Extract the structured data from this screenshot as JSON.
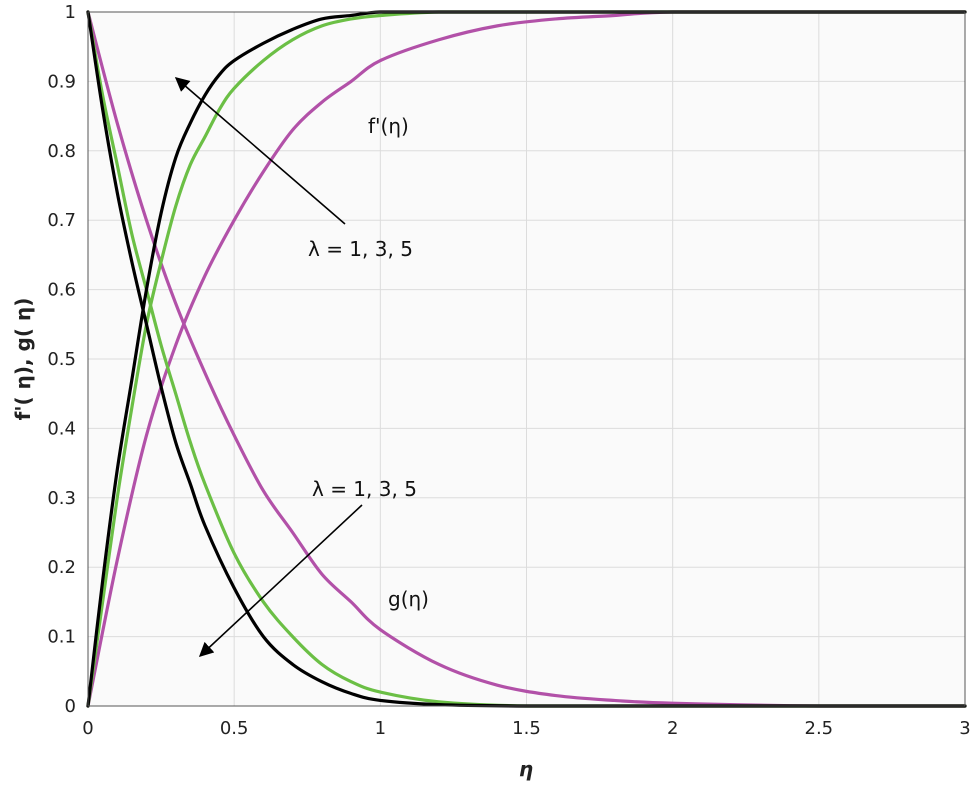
{
  "chart_data": {
    "type": "line",
    "xlabel": "η",
    "ylabel": "f'( η), g( η)",
    "xlim": [
      0,
      3
    ],
    "ylim": [
      0,
      1
    ],
    "x_ticks": [
      "0",
      "0.5",
      "1",
      "1.5",
      "2",
      "2.5",
      "3"
    ],
    "y_ticks": [
      "0",
      "0.1",
      "0.2",
      "0.3",
      "0.4",
      "0.5",
      "0.6",
      "0.7",
      "0.8",
      "0.9",
      "1"
    ],
    "grid": true,
    "colors": {
      "lambda1": "#000000",
      "lambda3": "#6bbf45",
      "lambda5": "#b251a8"
    },
    "series": [
      {
        "group": "f'",
        "lambda": 1,
        "color": "#000000",
        "x": [
          0,
          0.05,
          0.1,
          0.15,
          0.2,
          0.25,
          0.3,
          0.35,
          0.4,
          0.45,
          0.5,
          0.6,
          0.7,
          0.8,
          0.9,
          1.0,
          1.2,
          1.5,
          2,
          2.5,
          3
        ],
        "y": [
          0,
          0.18,
          0.34,
          0.47,
          0.6,
          0.71,
          0.79,
          0.84,
          0.88,
          0.91,
          0.93,
          0.955,
          0.975,
          0.99,
          0.995,
          1,
          1,
          1,
          1,
          1,
          1
        ]
      },
      {
        "group": "f'",
        "lambda": 3,
        "color": "#6bbf45",
        "x": [
          0,
          0.05,
          0.1,
          0.15,
          0.2,
          0.25,
          0.3,
          0.35,
          0.4,
          0.45,
          0.5,
          0.6,
          0.7,
          0.8,
          0.9,
          1.0,
          1.2,
          1.5,
          2,
          2.5,
          3
        ],
        "y": [
          0,
          0.15,
          0.3,
          0.43,
          0.55,
          0.64,
          0.72,
          0.78,
          0.82,
          0.86,
          0.89,
          0.93,
          0.96,
          0.98,
          0.99,
          0.995,
          1,
          1,
          1,
          1,
          1
        ]
      },
      {
        "group": "f'",
        "lambda": 5,
        "color": "#b251a8",
        "x": [
          0,
          0.1,
          0.2,
          0.3,
          0.4,
          0.5,
          0.6,
          0.7,
          0.8,
          0.9,
          1.0,
          1.2,
          1.4,
          1.6,
          1.8,
          2.0,
          2.5,
          3
        ],
        "y": [
          0,
          0.21,
          0.39,
          0.52,
          0.62,
          0.7,
          0.77,
          0.83,
          0.87,
          0.9,
          0.93,
          0.96,
          0.98,
          0.99,
          0.995,
          1,
          1,
          1
        ]
      },
      {
        "group": "g",
        "lambda": 1,
        "color": "#000000",
        "x": [
          0,
          0.05,
          0.1,
          0.15,
          0.2,
          0.25,
          0.3,
          0.35,
          0.4,
          0.5,
          0.6,
          0.7,
          0.8,
          0.9,
          1.0,
          1.2,
          1.5,
          2,
          2.5,
          3
        ],
        "y": [
          1,
          0.86,
          0.74,
          0.64,
          0.55,
          0.46,
          0.38,
          0.32,
          0.26,
          0.17,
          0.1,
          0.06,
          0.035,
          0.018,
          0.008,
          0.002,
          0,
          0,
          0,
          0
        ]
      },
      {
        "group": "g",
        "lambda": 3,
        "color": "#6bbf45",
        "x": [
          0,
          0.05,
          0.1,
          0.15,
          0.2,
          0.25,
          0.3,
          0.35,
          0.4,
          0.5,
          0.6,
          0.7,
          0.8,
          0.9,
          1.0,
          1.2,
          1.5,
          2,
          2.5,
          3
        ],
        "y": [
          1,
          0.88,
          0.78,
          0.68,
          0.6,
          0.52,
          0.45,
          0.38,
          0.32,
          0.22,
          0.15,
          0.1,
          0.06,
          0.035,
          0.02,
          0.006,
          0,
          0,
          0,
          0
        ]
      },
      {
        "group": "g",
        "lambda": 5,
        "color": "#b251a8",
        "x": [
          0,
          0.1,
          0.2,
          0.3,
          0.4,
          0.5,
          0.6,
          0.7,
          0.8,
          0.9,
          1.0,
          1.2,
          1.4,
          1.6,
          1.8,
          2.0,
          2.5,
          3
        ],
        "y": [
          1,
          0.84,
          0.7,
          0.58,
          0.48,
          0.39,
          0.31,
          0.25,
          0.19,
          0.15,
          0.11,
          0.06,
          0.03,
          0.015,
          0.008,
          0.004,
          0,
          0
        ]
      }
    ],
    "annotations": {
      "f_label": "f'(η)",
      "g_label": "g(η)",
      "lambda_upper": "λ = 1, 3, 5",
      "lambda_lower": "λ = 1, 3, 5"
    }
  }
}
